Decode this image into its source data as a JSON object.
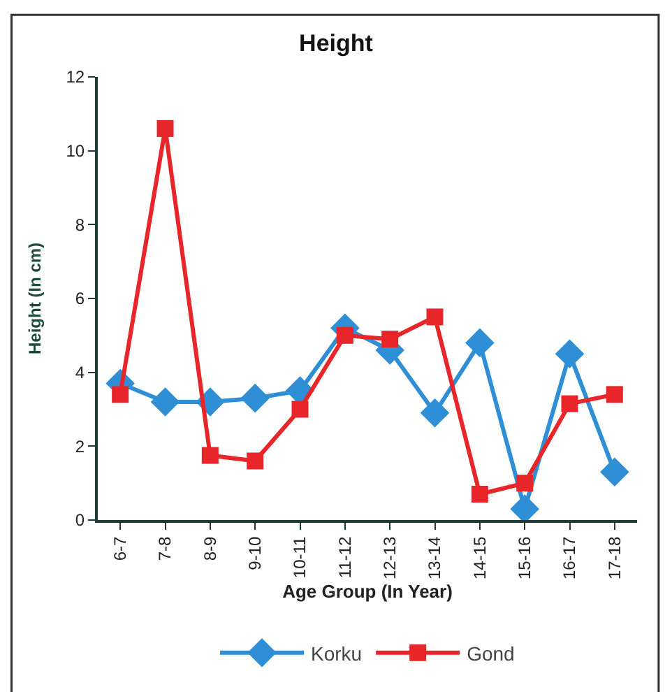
{
  "chart_data": {
    "type": "line",
    "title": "Height",
    "xlabel": "Age Group (In Year)",
    "ylabel": "Height (In cm)",
    "categories": [
      "6-7",
      "7-8",
      "8-9",
      "9-10",
      "10-11",
      "11-12",
      "12-13",
      "13-14",
      "14-15",
      "15-16",
      "16-17",
      "17-18"
    ],
    "series": [
      {
        "name": "Korku",
        "color": "#2e8fd6",
        "marker": "diamond",
        "values": [
          3.7,
          3.2,
          3.2,
          3.3,
          3.5,
          5.2,
          4.6,
          2.9,
          4.8,
          0.3,
          4.5,
          1.3
        ]
      },
      {
        "name": "Gond",
        "color": "#e8262a",
        "marker": "square",
        "values": [
          3.4,
          10.6,
          1.75,
          1.6,
          3.0,
          5.0,
          4.9,
          5.5,
          0.7,
          1.0,
          3.15,
          3.4
        ]
      }
    ],
    "ylim": [
      0,
      12
    ],
    "yticks": [
      0,
      2,
      4,
      6,
      8,
      10,
      12
    ],
    "legend": "bottom",
    "line_style": "solid"
  }
}
